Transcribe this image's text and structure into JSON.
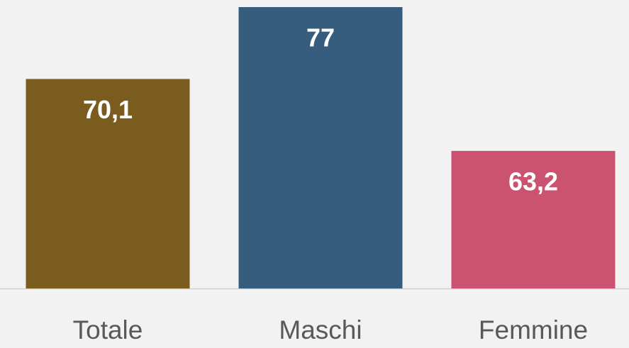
{
  "chart_data": {
    "type": "bar",
    "categories": [
      "Totale",
      "Maschi",
      "Femmine"
    ],
    "values": [
      70.1,
      77,
      63.2
    ],
    "value_labels": [
      "70,1",
      "77",
      "63,2"
    ],
    "colors": [
      "#7a5c1e",
      "#365d7e",
      "#cc5272"
    ],
    "ylim": [
      50,
      77
    ]
  }
}
